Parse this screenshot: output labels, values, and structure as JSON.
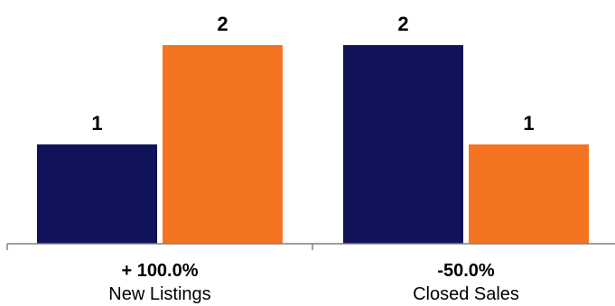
{
  "chart_data": {
    "type": "bar",
    "categories": [
      "New Listings",
      "Closed Sales"
    ],
    "category_changes": [
      "+ 100.0%",
      "-50.0%"
    ],
    "series": [
      {
        "values": [
          1,
          2
        ],
        "color": "#11135a"
      },
      {
        "values": [
          2,
          1
        ],
        "color": "#f47321"
      }
    ],
    "ylim": [
      0,
      2
    ],
    "grid": false,
    "legend": "none",
    "axis_color": "#7f7f7f"
  }
}
